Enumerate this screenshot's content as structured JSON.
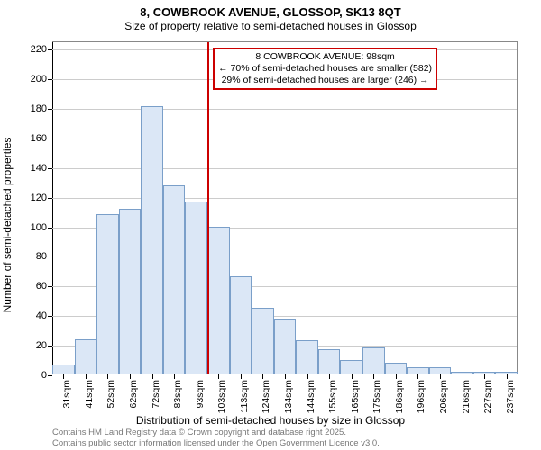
{
  "chart": {
    "type": "histogram",
    "title": "8, COWBROOK AVENUE, GLOSSOP, SK13 8QT",
    "subtitle": "Size of property relative to semi-detached houses in Glossop",
    "x_axis_title": "Distribution of semi-detached houses by size in Glossop",
    "y_axis_title": "Number of semi-detached properties",
    "background_color": "#ffffff",
    "grid_color": "#cccccc",
    "axis_color": "#000000",
    "bar_fill": "#dbe7f6",
    "bar_stroke": "#7a9fc9",
    "ref_line_color": "#cc0000",
    "annotation_border": "#cc0000",
    "annotation_bg": "#ffffff",
    "x_tick_suffix": "sqm",
    "x_tick_values": [
      31,
      41,
      52,
      62,
      72,
      83,
      93,
      103,
      113,
      124,
      134,
      144,
      155,
      165,
      175,
      186,
      196,
      206,
      216,
      227,
      237
    ],
    "values": [
      7,
      24,
      108,
      112,
      181,
      128,
      117,
      100,
      66,
      45,
      38,
      23,
      17,
      10,
      18,
      8,
      5,
      5,
      2,
      2,
      2
    ],
    "y_ticks": [
      0,
      20,
      40,
      60,
      80,
      100,
      120,
      140,
      160,
      180,
      200,
      220
    ],
    "ylim": [
      0,
      225
    ],
    "reference_value": 98,
    "annotation_lines": [
      "8 COWBROOK AVENUE: 98sqm",
      "← 70% of semi-detached houses are smaller (582)",
      "29% of semi-detached houses are larger (246) →"
    ],
    "attribution_lines": [
      "Contains HM Land Registry data © Crown copyright and database right 2025.",
      "Contains public sector information licensed under the Open Government Licence v3.0."
    ]
  }
}
